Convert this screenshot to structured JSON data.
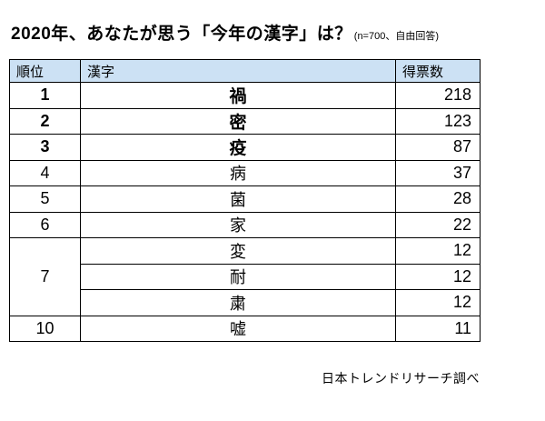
{
  "title": "2020年、あなたが思う「今年の漢字」は？",
  "title_note": "(n=700、自由回答)",
  "source": "日本トレンドリサーチ調べ",
  "table": {
    "headers": {
      "rank": "順位",
      "kanji": "漢字",
      "votes": "得票数"
    },
    "rows": [
      {
        "rank": "1",
        "kanji": "禍",
        "votes": "218"
      },
      {
        "rank": "2",
        "kanji": "密",
        "votes": "123"
      },
      {
        "rank": "3",
        "kanji": "疫",
        "votes": "87"
      },
      {
        "rank": "4",
        "kanji": "病",
        "votes": "37"
      },
      {
        "rank": "5",
        "kanji": "菌",
        "votes": "28"
      },
      {
        "rank": "6",
        "kanji": "家",
        "votes": "22"
      },
      {
        "rank": "7",
        "kanji": "変",
        "votes": "12"
      },
      {
        "rank": "7",
        "kanji": "耐",
        "votes": "12"
      },
      {
        "rank": "7",
        "kanji": "粛",
        "votes": "12"
      },
      {
        "rank": "10",
        "kanji": "嘘",
        "votes": "11"
      }
    ]
  },
  "chart_data": {
    "type": "table",
    "title": "2020年、あなたが思う「今年の漢字」は？ (n=700、自由回答)",
    "columns": [
      "順位",
      "漢字",
      "得票数"
    ],
    "rows": [
      [
        1,
        "禍",
        218
      ],
      [
        2,
        "密",
        123
      ],
      [
        3,
        "疫",
        87
      ],
      [
        4,
        "病",
        37
      ],
      [
        5,
        "菌",
        28
      ],
      [
        6,
        "家",
        22
      ],
      [
        7,
        "変",
        12
      ],
      [
        7,
        "耐",
        12
      ],
      [
        7,
        "粛",
        12
      ],
      [
        10,
        "嘘",
        11
      ]
    ],
    "source": "日本トレンドリサーチ調べ"
  }
}
